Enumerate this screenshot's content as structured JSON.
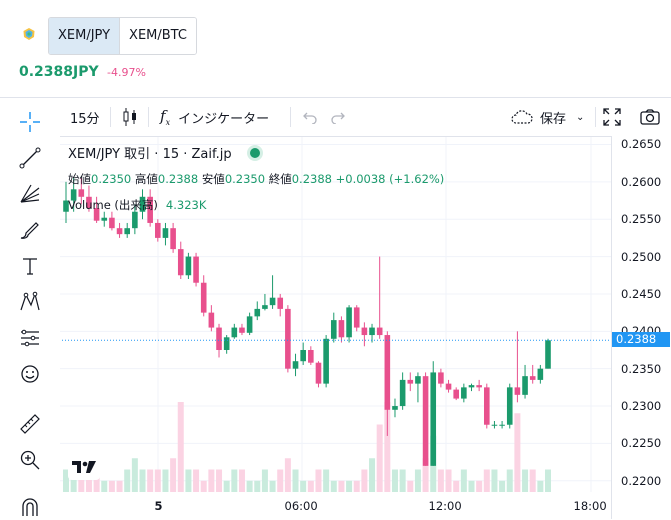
{
  "header": {
    "tabs": [
      {
        "label": "XEM/JPY",
        "active": true
      },
      {
        "label": "XEM/BTC",
        "active": false
      }
    ],
    "price": "0.2388JPY",
    "change": "-4.97%"
  },
  "toolbar": {
    "interval": "15分",
    "indicators": "インジケーター",
    "save": "保存"
  },
  "legend": {
    "title": "XEM/JPY 取引 · 15 · Zaif.jp",
    "open_label": "始値",
    "open": "0.2350",
    "high_label": "高値",
    "high": "0.2388",
    "low_label": "安値",
    "low": "0.2350",
    "close_label": "終値",
    "close": "0.2388",
    "change": "+0.0038 (+1.62%)",
    "volume_label": "Volume (出来高)",
    "volume": "4.323K"
  },
  "colors": {
    "up": "#1b9a6c",
    "down": "#e8508d",
    "accent": "#2196f3"
  },
  "chart_data": {
    "type": "candlestick",
    "x_ticks": [
      "5",
      "06:00",
      "12:00",
      "18:00"
    ],
    "y_ticks": [
      "0.2650",
      "0.2600",
      "0.2550",
      "0.2500",
      "0.2450",
      "0.2400",
      "0.2350",
      "0.2300",
      "0.2250",
      "0.2200"
    ],
    "ylim": [
      0.2185,
      0.266
    ],
    "last_price": "0.2388",
    "candles": [
      [
        0.256,
        0.26,
        0.2545,
        0.2575,
        1
      ],
      [
        0.2575,
        0.2605,
        0.256,
        0.259,
        1
      ],
      [
        0.259,
        0.2605,
        0.257,
        0.258,
        1
      ],
      [
        0.258,
        0.2595,
        0.256,
        0.2565,
        1
      ],
      [
        0.2565,
        0.258,
        0.2545,
        0.2548,
        1
      ],
      [
        0.2548,
        0.256,
        0.254,
        0.2552,
        1
      ],
      [
        0.2552,
        0.256,
        0.2535,
        0.2538,
        1
      ],
      [
        0.2538,
        0.2545,
        0.2525,
        0.253,
        1
      ],
      [
        0.253,
        0.2545,
        0.2525,
        0.2538,
        1
      ],
      [
        0.2538,
        0.257,
        0.253,
        0.256,
        1
      ],
      [
        0.256,
        0.259,
        0.255,
        0.258,
        1
      ],
      [
        0.258,
        0.259,
        0.254,
        0.2545,
        1
      ],
      [
        0.2545,
        0.255,
        0.252,
        0.2525,
        1
      ],
      [
        0.2525,
        0.2545,
        0.2515,
        0.2538,
        1
      ],
      [
        0.2538,
        0.2545,
        0.2505,
        0.251,
        1
      ],
      [
        0.251,
        0.252,
        0.247,
        0.2475,
        1
      ],
      [
        0.2475,
        0.2505,
        0.247,
        0.25,
        1
      ],
      [
        0.25,
        0.2505,
        0.246,
        0.2465,
        1
      ],
      [
        0.2465,
        0.2475,
        0.242,
        0.2425,
        1
      ],
      [
        0.2425,
        0.2435,
        0.24,
        0.2405,
        1
      ],
      [
        0.2405,
        0.241,
        0.2365,
        0.2375,
        1
      ],
      [
        0.2375,
        0.2395,
        0.237,
        0.2392,
        1
      ],
      [
        0.2392,
        0.241,
        0.239,
        0.2405,
        1
      ],
      [
        0.2405,
        0.241,
        0.2395,
        0.2398,
        1
      ],
      [
        0.2398,
        0.2425,
        0.2395,
        0.242,
        1
      ],
      [
        0.242,
        0.244,
        0.2415,
        0.243,
        1
      ],
      [
        0.243,
        0.245,
        0.2428,
        0.2435,
        1
      ],
      [
        0.2435,
        0.2475,
        0.243,
        0.2445,
        1
      ],
      [
        0.2445,
        0.245,
        0.242,
        0.243,
        1
      ],
      [
        0.243,
        0.2435,
        0.2345,
        0.235,
        1
      ],
      [
        0.235,
        0.237,
        0.234,
        0.236,
        1
      ],
      [
        0.236,
        0.2385,
        0.2355,
        0.2375,
        1
      ],
      [
        0.2375,
        0.238,
        0.2355,
        0.2358,
        1
      ],
      [
        0.2358,
        0.236,
        0.2325,
        0.233,
        1
      ],
      [
        0.233,
        0.2395,
        0.2325,
        0.239,
        1
      ],
      [
        0.239,
        0.2425,
        0.2385,
        0.2415,
        1
      ],
      [
        0.2415,
        0.242,
        0.2385,
        0.2392,
        1
      ],
      [
        0.2392,
        0.2435,
        0.2385,
        0.2432,
        1
      ],
      [
        0.2432,
        0.2435,
        0.24,
        0.2405,
        1
      ],
      [
        0.2405,
        0.2412,
        0.238,
        0.2395,
        1
      ],
      [
        0.2395,
        0.241,
        0.2385,
        0.2405,
        1
      ],
      [
        0.2405,
        0.25,
        0.239,
        0.2395,
        1
      ],
      [
        0.2395,
        0.24,
        0.226,
        0.2295,
        1
      ],
      [
        0.2295,
        0.231,
        0.2285,
        0.23,
        1
      ],
      [
        0.23,
        0.2345,
        0.2295,
        0.2335,
        1
      ],
      [
        0.2335,
        0.2345,
        0.232,
        0.233,
        1
      ],
      [
        0.233,
        0.2345,
        0.2305,
        0.234,
        1
      ],
      [
        0.234,
        0.2345,
        0.222,
        0.222,
        1
      ],
      [
        0.222,
        0.236,
        0.222,
        0.2345,
        1
      ],
      [
        0.2345,
        0.235,
        0.2325,
        0.233,
        1
      ],
      [
        0.233,
        0.2335,
        0.2318,
        0.2322,
        1
      ],
      [
        0.2322,
        0.2325,
        0.2308,
        0.231,
        1
      ],
      [
        0.231,
        0.233,
        0.2305,
        0.2325,
        1
      ],
      [
        0.2325,
        0.233,
        0.232,
        0.2328,
        1
      ],
      [
        0.2328,
        0.2335,
        0.232,
        0.2325,
        1
      ],
      [
        0.2325,
        0.233,
        0.227,
        0.2275,
        1
      ],
      [
        0.2275,
        0.228,
        0.227,
        0.2275,
        1
      ],
      [
        0.2275,
        0.228,
        0.227,
        0.2275,
        1
      ],
      [
        0.2275,
        0.233,
        0.227,
        0.2325,
        1
      ],
      [
        0.2325,
        0.24,
        0.2305,
        0.2315,
        1
      ],
      [
        0.2315,
        0.2355,
        0.231,
        0.234,
        1
      ],
      [
        0.234,
        0.2355,
        0.233,
        0.2335,
        1
      ],
      [
        0.2335,
        0.2355,
        0.233,
        0.235,
        1
      ],
      [
        0.235,
        0.239,
        0.235,
        0.2388,
        1
      ]
    ],
    "volumes": [
      2,
      3,
      2,
      2,
      2,
      1,
      1,
      1,
      2,
      3,
      2,
      2,
      2,
      2,
      3,
      8,
      2,
      2,
      1,
      2,
      2,
      1,
      2,
      2,
      1,
      1,
      2,
      1,
      2,
      3,
      2,
      1,
      1,
      2,
      2,
      1,
      1,
      1,
      1,
      2,
      3,
      6,
      8,
      2,
      2,
      1,
      2,
      3,
      5,
      2,
      2,
      1,
      2,
      1,
      1,
      2,
      2,
      1,
      2,
      7,
      2,
      2,
      1,
      2
    ]
  }
}
